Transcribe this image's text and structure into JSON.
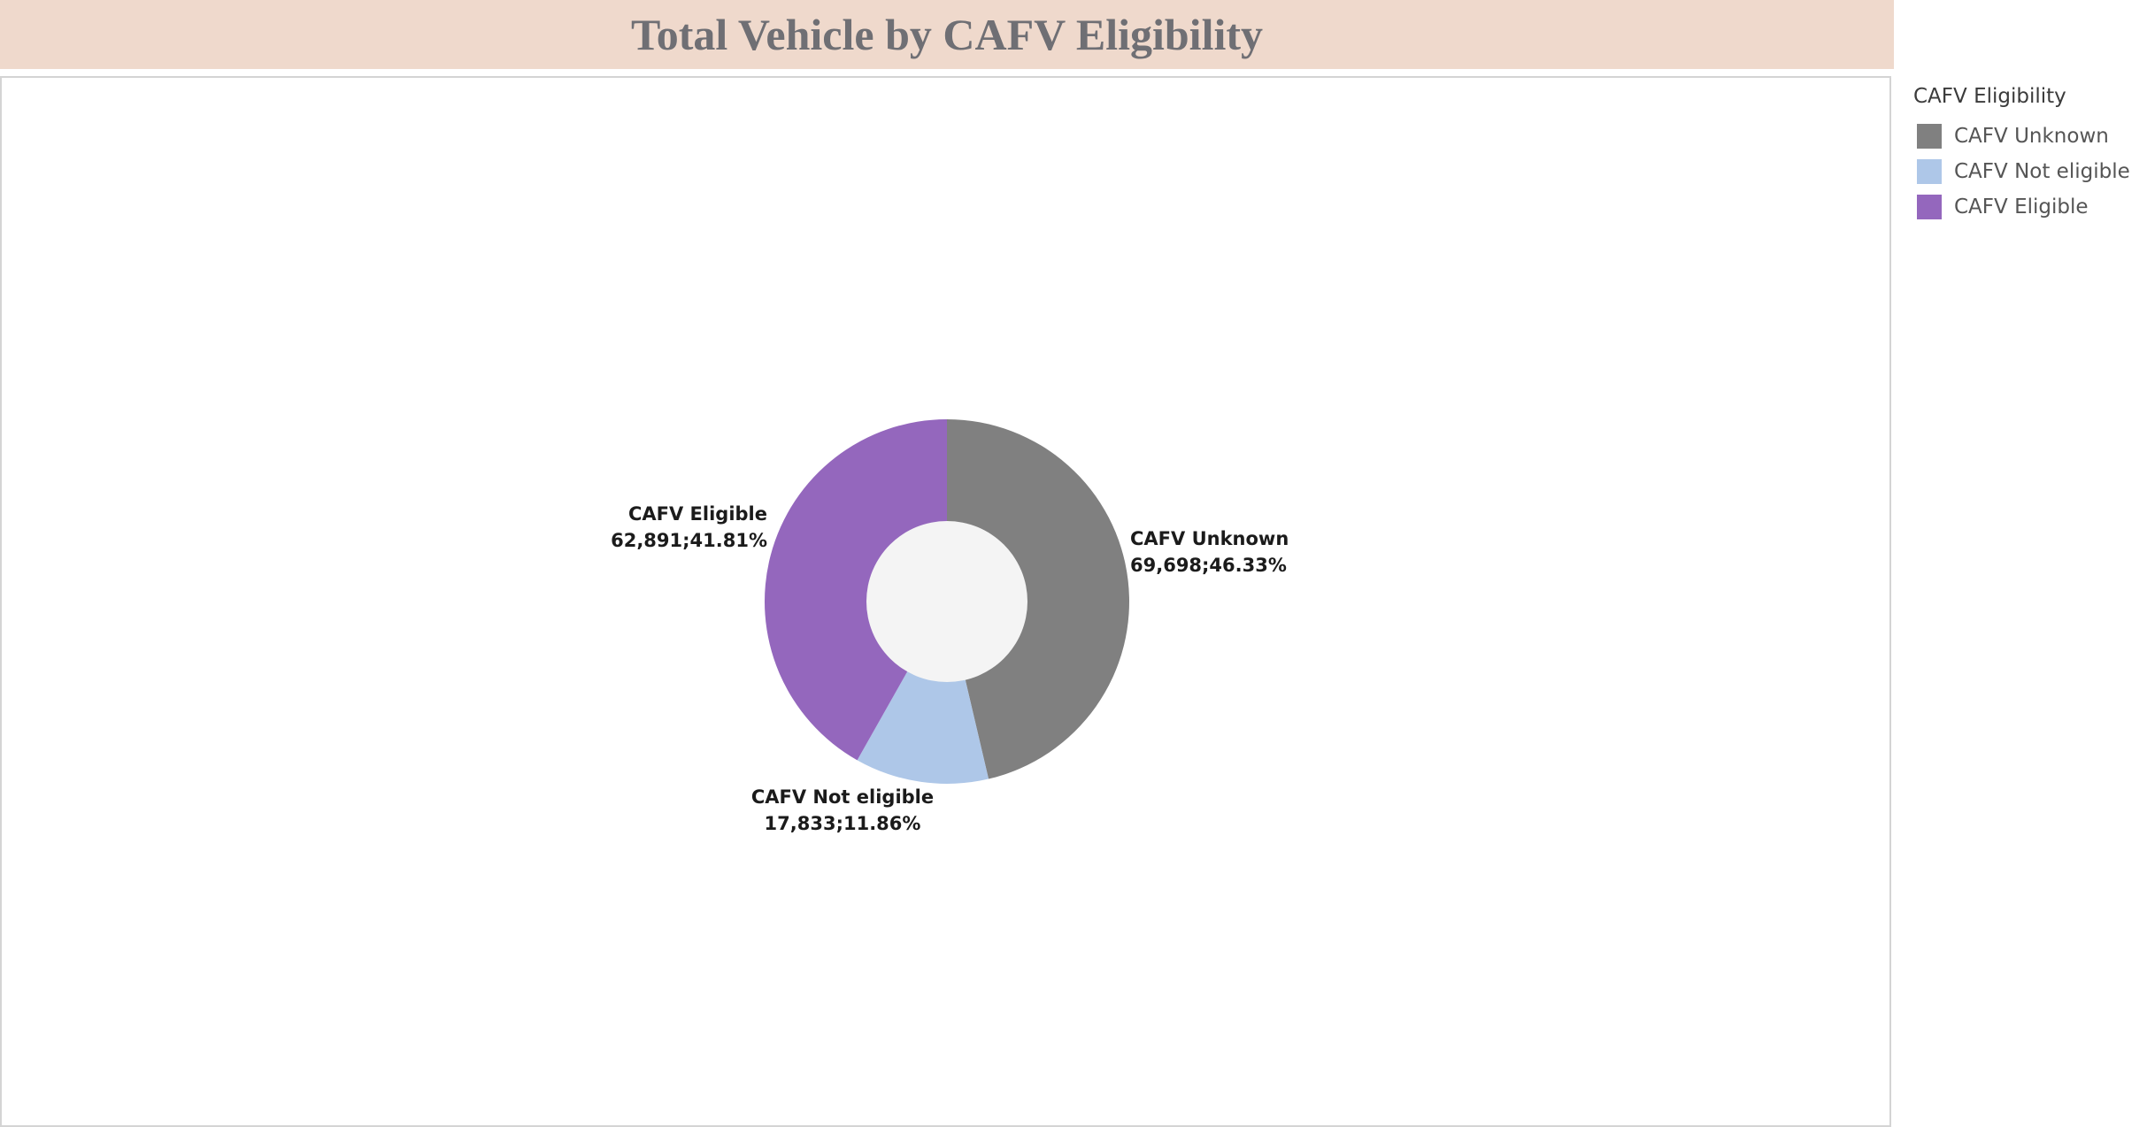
{
  "title": "Total Vehicle by CAFV Eligibility",
  "legend": {
    "title": "CAFV Eligibility",
    "items": [
      {
        "label": "CAFV Unknown",
        "color": "#808080"
      },
      {
        "label": "CAFV Not eligible",
        "color": "#aec7e8"
      },
      {
        "label": "CAFV Eligible",
        "color": "#9467bd"
      }
    ]
  },
  "chart_data": {
    "type": "pie",
    "variant": "donut",
    "title": "Total Vehicle by CAFV Eligibility",
    "legend_title": "CAFV Eligibility",
    "legend_position": "right",
    "slices": [
      {
        "label": "CAFV Unknown",
        "value": 69698,
        "percent": "46.33%",
        "color": "#808080",
        "value_label": "69,698;46.33%"
      },
      {
        "label": "CAFV Not eligible",
        "value": 17833,
        "percent": "11.86%",
        "color": "#aec7e8",
        "value_label": "17,833;11.86%"
      },
      {
        "label": "CAFV Eligible",
        "value": 62891,
        "percent": "41.81%",
        "color": "#9467bd",
        "value_label": "62,891;41.81%"
      }
    ],
    "center_color": "#f4f4f4"
  }
}
